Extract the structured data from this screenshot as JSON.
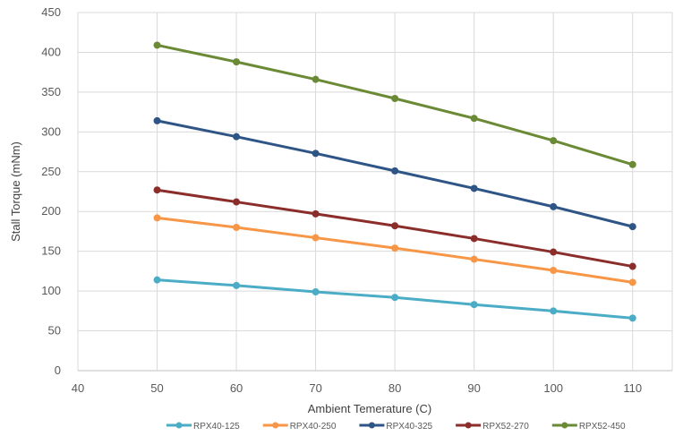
{
  "chart_data": {
    "type": "line",
    "title": "",
    "xlabel": "Ambient Temerature (C)",
    "ylabel": "Stall Torque (mNm)",
    "xlim": [
      40,
      115
    ],
    "ylim": [
      0,
      450
    ],
    "x_ticks": [
      40,
      50,
      60,
      70,
      80,
      90,
      100,
      110
    ],
    "y_ticks": [
      0,
      50,
      100,
      150,
      200,
      250,
      300,
      350,
      400,
      450
    ],
    "grid": true,
    "legend_position": "bottom",
    "x": [
      50,
      60,
      70,
      80,
      90,
      100,
      110
    ],
    "series": [
      {
        "name": "RPX40-125",
        "color": "#4bacc6",
        "values": [
          114,
          107,
          99,
          92,
          83,
          75,
          66
        ]
      },
      {
        "name": "RPX40-250",
        "color": "#f79646",
        "values": [
          192,
          180,
          167,
          154,
          140,
          126,
          111
        ]
      },
      {
        "name": "RPX40-325",
        "color": "#2f5587",
        "values": [
          314,
          294,
          273,
          251,
          229,
          206,
          181
        ]
      },
      {
        "name": "RPX52-270",
        "color": "#8b2e2b",
        "values": [
          227,
          212,
          197,
          182,
          166,
          149,
          131
        ]
      },
      {
        "name": "RPX52-450",
        "color": "#6b8a35",
        "values": [
          409,
          388,
          366,
          342,
          317,
          289,
          259
        ]
      }
    ]
  }
}
